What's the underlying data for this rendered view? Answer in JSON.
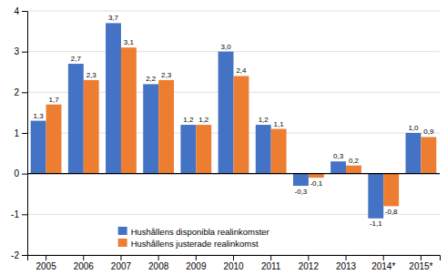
{
  "chart_data": {
    "type": "bar",
    "categories": [
      "2005",
      "2006",
      "2007",
      "2008",
      "2009",
      "2010",
      "2011",
      "2012",
      "2013",
      "2014*",
      "2015*"
    ],
    "series": [
      {
        "name": "Hushållens disponibla realinkomster",
        "color": "#4472C4",
        "values": [
          1.3,
          2.7,
          3.7,
          2.2,
          1.2,
          3.0,
          1.2,
          -0.3,
          0.3,
          -1.1,
          1.0
        ],
        "value_labels": [
          "1,3",
          "2,7",
          "3,7",
          "2,2",
          "1,2",
          "3,0",
          "1,2",
          "-0,3",
          "0,3",
          "-1,1",
          "1,0"
        ]
      },
      {
        "name": "Hushållens justerade realinkomst",
        "color": "#ED7D31",
        "values": [
          1.7,
          2.3,
          3.1,
          2.3,
          1.2,
          2.4,
          1.1,
          -0.1,
          0.2,
          -0.8,
          0.9
        ],
        "value_labels": [
          "1,7",
          "2,3",
          "3,1",
          "2,3",
          "1,2",
          "2,4",
          "1,1",
          "-0,1",
          "0,2",
          "-0,8",
          "0,9"
        ]
      }
    ],
    "ylim": [
      -2,
      4
    ],
    "yticks": [
      -2,
      -1,
      0,
      1,
      2,
      3,
      4
    ],
    "grid": true,
    "legend": "lower left",
    "data_labels": true
  }
}
